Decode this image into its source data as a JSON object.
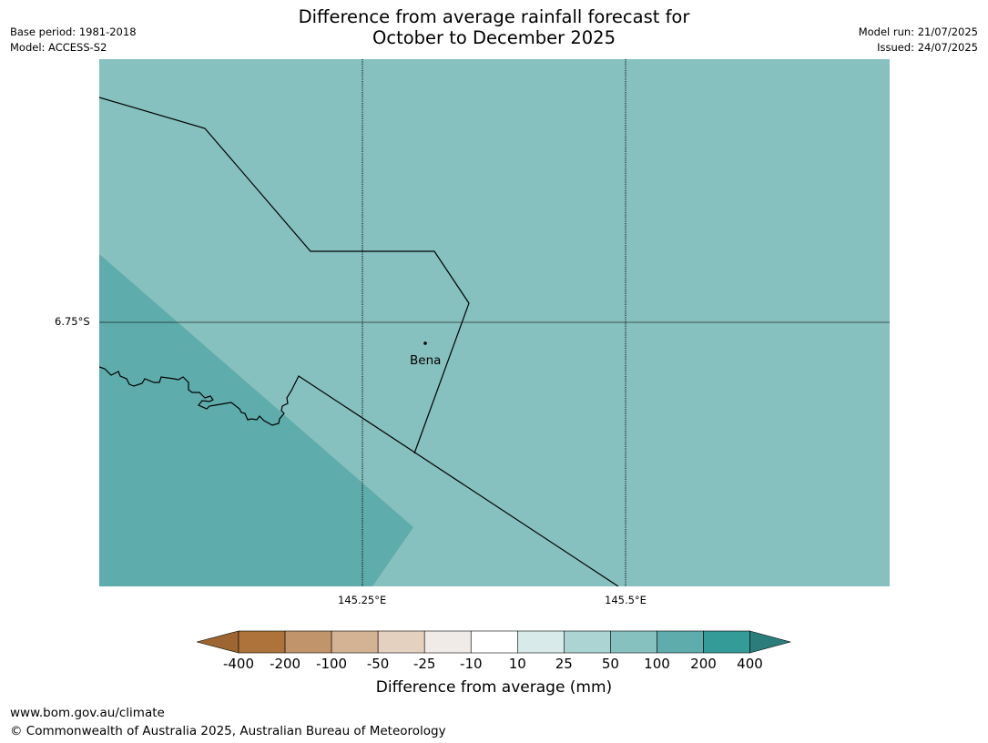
{
  "title": {
    "line1": "Difference from average rainfall forecast for",
    "line2": "October to December 2025"
  },
  "meta_left": {
    "base_period": "Base period: 1981-2018",
    "model": "Model: ACCESS-S2"
  },
  "meta_right": {
    "model_run": "Model run: 21/07/2025",
    "issued": "Issued: 24/07/2025"
  },
  "map": {
    "place_label": "Bena",
    "lat_label": "6.75°S",
    "lon_labels": [
      "145.25°E",
      "145.5°E"
    ],
    "colors": {
      "main_fill": "#86c1bf",
      "wet_region_fill": "#5eacab",
      "boundary_line": "#000000",
      "gridline": "#000000"
    }
  },
  "colorbar": {
    "title": "Difference from average (mm)",
    "tick_labels": [
      "-400",
      "-200",
      "-100",
      "-50",
      "-25",
      "-10",
      "10",
      "25",
      "50",
      "100",
      "200",
      "400"
    ],
    "low_extend_color": "#9c6531",
    "high_extend_color": "#2a7d7b",
    "bin_colors": [
      "#ad733a",
      "#c1946b",
      "#d4b394",
      "#e5d1bf",
      "#f0ebe7",
      "#ffffff",
      "#d8eae9",
      "#acd4d3",
      "#86c1bf",
      "#5eacab",
      "#349b98"
    ]
  },
  "footer": {
    "url": "www.bom.gov.au/climate",
    "copyright": "© Commonwealth of Australia 2025, Australian Bureau of Meteorology"
  }
}
